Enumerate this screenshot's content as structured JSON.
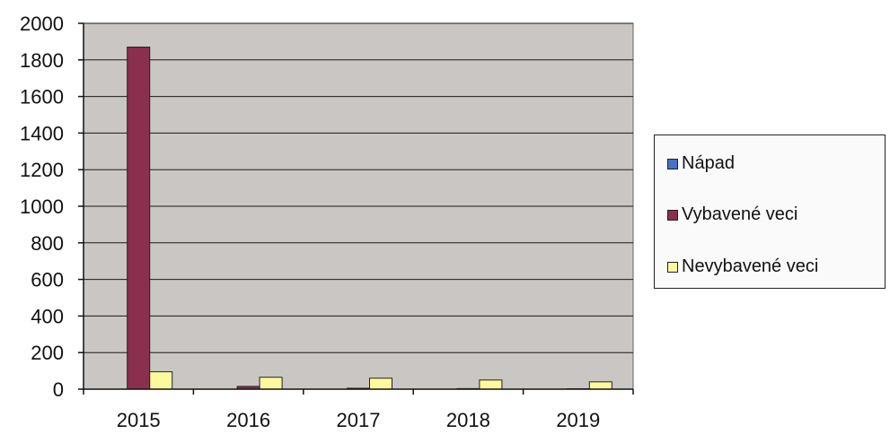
{
  "chart_data": {
    "type": "bar",
    "categories": [
      "2015",
      "2016",
      "2017",
      "2018",
      "2019"
    ],
    "series": [
      {
        "name": "Nápad",
        "values": [
          0,
          0,
          0,
          0,
          0
        ],
        "color": "#4472c4"
      },
      {
        "name": "Vybavené veci",
        "values": [
          1870,
          15,
          5,
          3,
          2
        ],
        "color": "#8b2f4e"
      },
      {
        "name": "Nevybavené veci",
        "values": [
          95,
          65,
          60,
          50,
          40
        ],
        "color": "#fdfa9e"
      }
    ],
    "ylim": [
      0,
      2000
    ],
    "yticks": [
      0,
      200,
      400,
      600,
      800,
      1000,
      1200,
      1400,
      1600,
      1800,
      2000
    ],
    "grid": true,
    "legend": "right",
    "plot_background": "#c9c6c3",
    "title": "",
    "xlabel": "",
    "ylabel": ""
  }
}
